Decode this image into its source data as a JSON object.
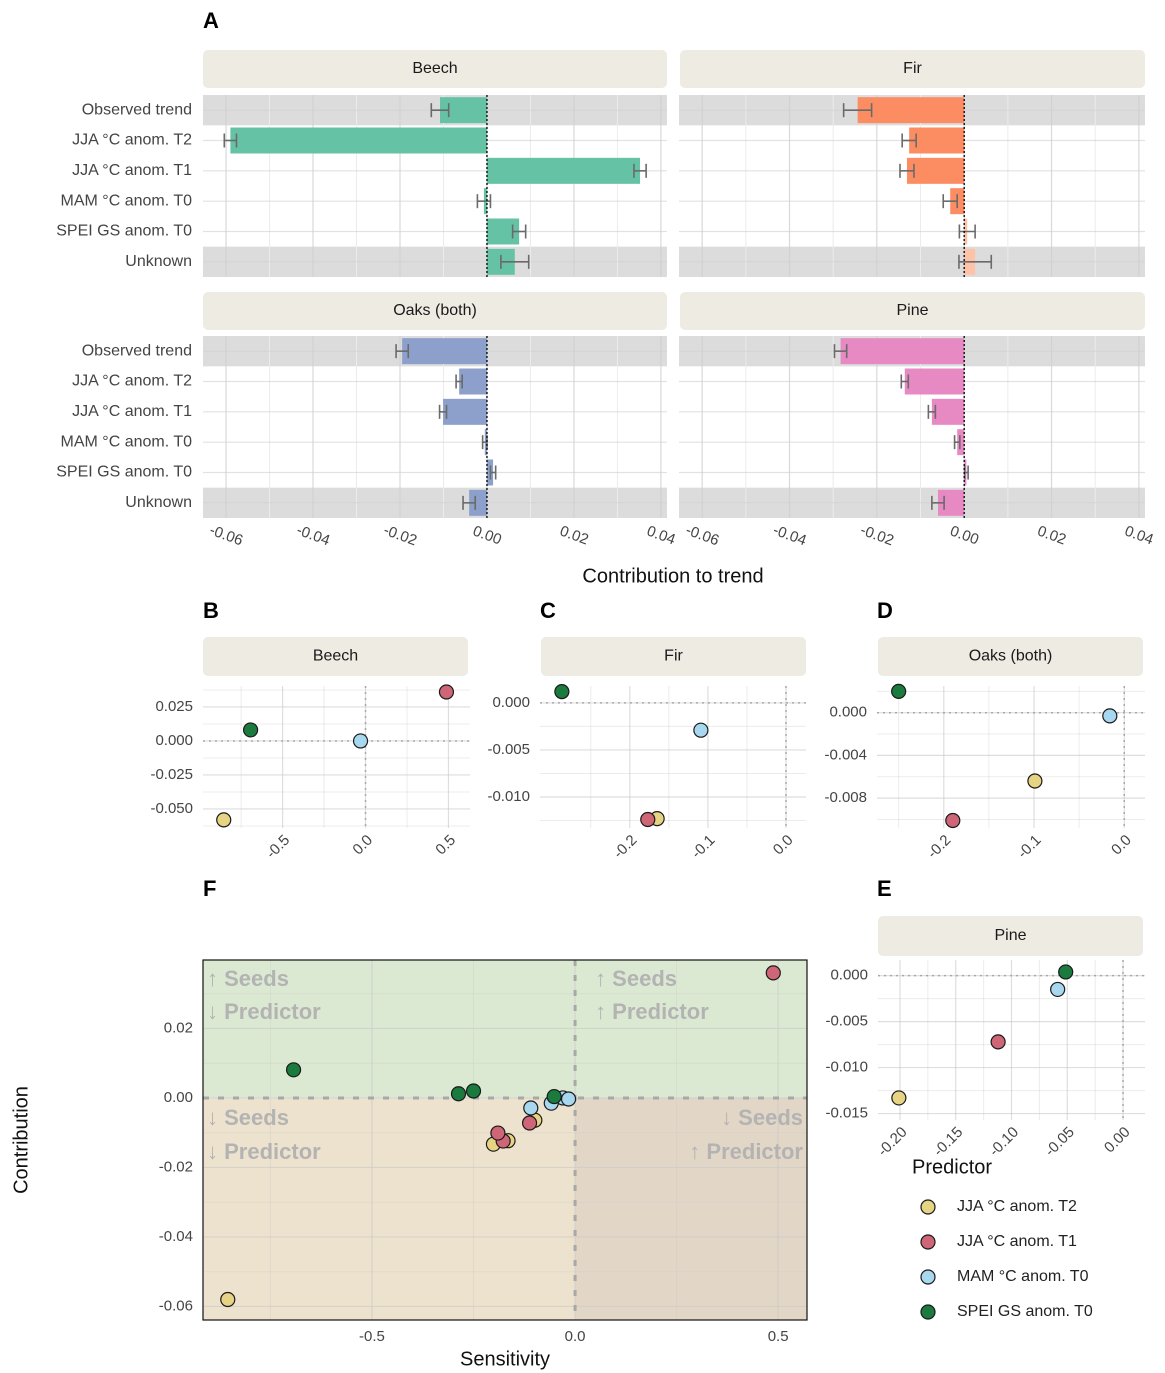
{
  "chart_data": [
    {
      "type": "bar",
      "panel": "A",
      "title": "Beech",
      "xlabel": "Contribution to trend",
      "categories": [
        "Observed trend",
        "JJA °C anom. T2",
        "JJA °C anom. T1",
        "MAM °C anom. T0",
        "SPEI GS anom. T0",
        "Unknown"
      ],
      "values": [
        -0.0108,
        -0.059,
        0.0352,
        -0.0007,
        0.0074,
        0.0064
      ],
      "errors": [
        0.002,
        0.0014,
        0.0014,
        0.0015,
        0.0015,
        0.0032
      ],
      "colors": [
        "#66c2a5",
        "#66c2a5",
        "#66c2a5",
        "#66c2a5",
        "#66c2a5",
        "#66c2a5"
      ],
      "xlim": [
        -0.0653,
        0.0414
      ],
      "xticks": [
        -0.06,
        -0.04,
        -0.02,
        0,
        0.02,
        0.04
      ],
      "grid": true
    },
    {
      "type": "bar",
      "title": "Fir",
      "values": [
        -0.0244,
        -0.0126,
        -0.0131,
        -0.0032,
        0.0007,
        0.0025
      ],
      "errors": [
        0.0032,
        0.0016,
        0.0016,
        0.0016,
        0.0018,
        0.0037
      ],
      "colors": [
        "#fc8d62",
        "#fc8d62",
        "#fc8d62",
        "#fc8d62",
        "#fcc3a9",
        "#fcc3a9"
      ],
      "xlim": [
        -0.0653,
        0.0414
      ],
      "xticks": [
        -0.06,
        -0.04,
        -0.02,
        0,
        0.02,
        0.04
      ],
      "grid": true
    },
    {
      "type": "bar",
      "title": "Oaks (both)",
      "categories": [
        "Observed trend",
        "JJA °C anom. T2",
        "JJA °C anom. T1",
        "MAM °C anom. T0",
        "SPEI GS anom. T0",
        "Unknown"
      ],
      "values": [
        -0.0195,
        -0.0064,
        -0.0101,
        -0.0005,
        0.0014,
        -0.0041
      ],
      "errors": [
        0.0014,
        0.0007,
        0.0008,
        0.0005,
        0.0006,
        0.0014
      ],
      "colors": [
        "#8da0cb",
        "#8da0cb",
        "#8da0cb",
        "#8da0cb",
        "#8da0cb",
        "#8da0cb"
      ],
      "xlim": [
        -0.0653,
        0.0414
      ],
      "xticks": [
        -0.06,
        -0.04,
        -0.02,
        {
          "value": 0,
          "label": "0.00"
        },
        0.02,
        0.04
      ],
      "grid": true
    },
    {
      "type": "bar",
      "title": "Pine",
      "values": [
        -0.0283,
        -0.0136,
        -0.0074,
        -0.0016,
        0.0005,
        -0.006
      ],
      "errors": [
        0.0014,
        0.0008,
        0.0008,
        0.0006,
        0.0004,
        0.0014
      ],
      "colors": [
        "#e78ac3",
        "#e78ac3",
        "#e78ac3",
        "#e78ac3",
        "#e78ac3",
        "#e78ac3"
      ],
      "xlim": [
        -0.0653,
        0.0414
      ],
      "xticks": [
        -0.06,
        -0.04,
        -0.02,
        {
          "value": 0,
          "label": "0.00"
        },
        0.02,
        0.04
      ],
      "grid": true
    },
    {
      "type": "scatter",
      "panel": "B",
      "title": "Beech",
      "x": [
        -0.855,
        0.488,
        -0.03,
        -0.693
      ],
      "values": [
        -0.058,
        0.036,
        0,
        0.0081
      ],
      "colors": [
        "#e6d383",
        "#cf6677",
        "#a8d8f0",
        "#1b7a3e"
      ],
      "xlim": [
        -0.98,
        0.63
      ],
      "ylim": [
        -0.064,
        0.0404
      ],
      "xticks": [
        -0.5,
        {
          "value": 0,
          "label": "0.0"
        },
        0.5
      ],
      "yticks": [
        {
          "value": -0.05,
          "label": "-0.050"
        },
        -0.025,
        {
          "value": 0,
          "label": "0.000"
        },
        0.025
      ],
      "grid": true
    },
    {
      "type": "scatter",
      "panel": "C",
      "title": "Fir",
      "x": [
        -0.165,
        -0.177,
        -0.109,
        -0.287
      ],
      "values": [
        -0.0123,
        -0.0124,
        -0.0029,
        0.0012
      ],
      "colors": [
        "#e6d383",
        "#cf6677",
        "#a8d8f0",
        "#1b7a3e"
      ],
      "xlim": [
        -0.315,
        0.0256
      ],
      "ylim": [
        -0.0133,
        0.0018
      ],
      "xticks": [
        -0.2,
        -0.1,
        {
          "value": 0,
          "label": "0.0"
        }
      ],
      "yticks": [
        {
          "value": -0.01,
          "label": "-0.010"
        },
        -0.005,
        {
          "value": 0,
          "label": "0.000"
        }
      ],
      "grid": true
    },
    {
      "type": "scatter",
      "panel": "D",
      "title": "Oaks (both)",
      "x": [
        -0.099,
        -0.19,
        -0.016,
        -0.25
      ],
      "values": [
        -0.0064,
        -0.0101,
        -0.0003,
        0.002
      ],
      "colors": [
        "#e6d383",
        "#cf6677",
        "#a8d8f0",
        "#1b7a3e"
      ],
      "xlim": [
        -0.274,
        0.023
      ],
      "ylim": [
        -0.0108,
        0.0025
      ],
      "xticks": [
        -0.2,
        -0.1,
        {
          "value": 0,
          "label": "0.0"
        }
      ],
      "yticks": [
        -0.008,
        -0.004,
        {
          "value": 0,
          "label": "0.000"
        }
      ],
      "grid": true
    },
    {
      "type": "scatter",
      "panel": "E",
      "title": "Pine",
      "x": [
        -0.201,
        -0.112,
        -0.0586,
        -0.0514
      ],
      "values": [
        -0.0133,
        -0.0072,
        -0.0015,
        0.0004
      ],
      "colors": [
        "#e6d383",
        "#cf6677",
        "#a8d8f0",
        "#1b7a3e"
      ],
      "xlim": [
        -0.2197,
        0.0197
      ],
      "ylim": [
        -0.0157,
        0.0017
      ],
      "xticks": [
        {
          "value": -0.2,
          "label": "-0.20"
        },
        -0.15,
        {
          "value": -0.1,
          "label": "-0.10"
        },
        -0.05,
        {
          "value": 0,
          "label": "0.00"
        }
      ],
      "yticks": [
        -0.015,
        {
          "value": -0.01,
          "label": "-0.010"
        },
        -0.005,
        {
          "value": 0,
          "label": "0.000"
        }
      ],
      "grid": true
    },
    {
      "type": "scatter",
      "panel": "F",
      "xlabel": "Sensitivity",
      "ylabel": "Contribution",
      "series": [
        {
          "name": "JJA °C anom. T2",
          "color": "#e6d383",
          "x": [
            -0.855,
            -0.165,
            -0.099,
            -0.201
          ],
          "values": [
            -0.058,
            -0.0123,
            -0.0064,
            -0.0133
          ]
        },
        {
          "name": "JJA °C anom. T1",
          "color": "#cf6677",
          "x": [
            0.488,
            -0.177,
            -0.19,
            -0.112
          ],
          "values": [
            0.036,
            -0.0124,
            -0.0101,
            -0.0072
          ]
        },
        {
          "name": "MAM °C anom. T0",
          "color": "#a8d8f0",
          "x": [
            -0.03,
            -0.109,
            -0.016,
            -0.0586
          ],
          "values": [
            0,
            -0.0029,
            -0.0003,
            -0.0015
          ]
        },
        {
          "name": "SPEI GS anom. T0",
          "color": "#1b7a3e",
          "x": [
            -0.693,
            -0.287,
            -0.25,
            -0.0514
          ],
          "values": [
            0.0081,
            0.0012,
            0.002,
            0.0004
          ]
        }
      ],
      "legend": {
        "title": "Predictor",
        "position": "right"
      },
      "annotations": [
        "↑ Seeds",
        "↓ Predictor",
        "↑ Seeds",
        "↑ Predictor",
        "↓ Seeds",
        "↓ Predictor",
        "↓ Seeds",
        "↑ Predictor"
      ],
      "xlim": [
        -0.916,
        0.571
      ],
      "ylim": [
        -0.0639,
        0.0397
      ],
      "xticks": [
        -0.5,
        {
          "value": 0,
          "label": "0.0"
        },
        0.5
      ],
      "yticks": [
        -0.06,
        -0.04,
        -0.02,
        {
          "value": 0,
          "label": "0.00"
        },
        0.02
      ],
      "grid": true
    }
  ]
}
